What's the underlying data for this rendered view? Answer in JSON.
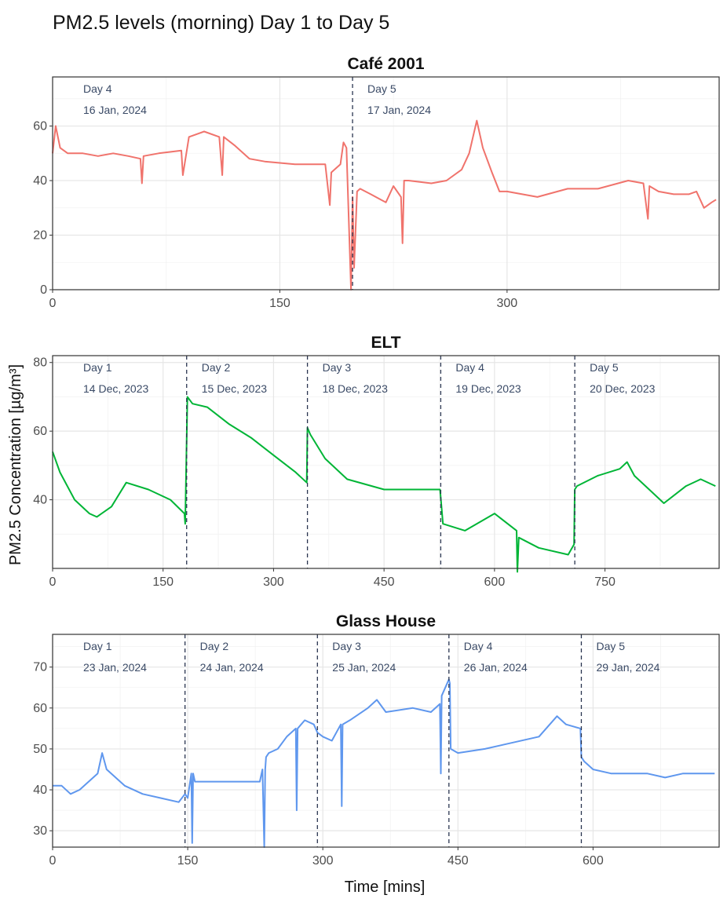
{
  "title": "PM2.5 levels (morning) Day 1 to Day 5",
  "xlabel": "Time [mins]",
  "ylabel": "PM2.5 Concentration [µg/m³]",
  "chart_data": [
    {
      "type": "line",
      "title": "Café 2001",
      "color": "#f0736c",
      "xlim": [
        0,
        440
      ],
      "ylim": [
        0,
        78
      ],
      "xticks": [
        0,
        150,
        300
      ],
      "yticks": [
        0,
        20,
        40,
        60
      ],
      "days": [
        {
          "start": 0,
          "name": "Day 4",
          "date": "16 Jan, 2024"
        },
        {
          "start": 198,
          "name": "Day 5",
          "date": "17 Jan, 2024"
        }
      ],
      "series": [
        {
          "x": [
            0,
            2,
            5,
            10,
            20,
            30,
            40,
            50,
            58,
            59,
            60,
            70,
            85,
            86,
            90,
            100,
            110,
            112,
            113,
            120,
            130,
            140,
            160,
            180,
            183,
            184,
            190,
            192,
            194,
            197,
            198,
            199,
            201,
            203,
            210,
            220,
            225,
            230,
            231,
            232,
            235,
            250,
            260,
            270,
            275,
            280,
            284,
            290,
            295,
            300,
            320,
            340,
            360,
            380,
            390,
            393,
            394,
            400,
            410,
            420,
            425,
            430,
            435,
            438
          ],
          "y": [
            50,
            60,
            52,
            50,
            50,
            49,
            50,
            49,
            48,
            39,
            49,
            50,
            51,
            42,
            56,
            58,
            56,
            42,
            56,
            53,
            48,
            47,
            46,
            46,
            31,
            43,
            46,
            54,
            52,
            0,
            34,
            8,
            36,
            37,
            35,
            32,
            38,
            34,
            17,
            40,
            40,
            39,
            40,
            44,
            50,
            62,
            52,
            43,
            36,
            36,
            34,
            37,
            37,
            40,
            39,
            26,
            38,
            36,
            35,
            35,
            36,
            30,
            32,
            33
          ]
        }
      ]
    },
    {
      "type": "line",
      "title": "ELT",
      "color": "#00b536",
      "xlim": [
        0,
        905
      ],
      "ylim": [
        20,
        82
      ],
      "xticks": [
        0,
        150,
        300,
        450,
        600,
        750
      ],
      "yticks": [
        40,
        60,
        80
      ],
      "days": [
        {
          "start": 0,
          "name": "Day 1",
          "date": "14 Dec, 2023"
        },
        {
          "start": 182,
          "name": "Day 2",
          "date": "15 Dec, 2023"
        },
        {
          "start": 346,
          "name": "Day 3",
          "date": "18 Dec, 2023"
        },
        {
          "start": 527,
          "name": "Day 4",
          "date": "19 Dec, 2023"
        },
        {
          "start": 709,
          "name": "Day 5",
          "date": "20 Dec, 2023"
        }
      ],
      "series": [
        {
          "x": [
            0,
            10,
            30,
            50,
            60,
            80,
            100,
            130,
            160,
            179,
            180,
            183,
            190,
            210,
            240,
            270,
            300,
            330,
            345,
            346,
            350,
            370,
            400,
            450,
            500,
            525,
            526,
            530,
            560,
            600,
            630,
            631,
            633,
            660,
            700,
            708,
            709,
            712,
            740,
            770,
            780,
            790,
            810,
            830,
            860,
            880,
            900
          ],
          "y": [
            54,
            48,
            40,
            36,
            35,
            38,
            45,
            43,
            40,
            36,
            33,
            70,
            68,
            67,
            62,
            58,
            53,
            48,
            45,
            61,
            59,
            52,
            46,
            43,
            43,
            43,
            43,
            33,
            31,
            36,
            31,
            19,
            29,
            26,
            24,
            27,
            43,
            44,
            47,
            49,
            51,
            47,
            43,
            39,
            44,
            46,
            44
          ]
        }
      ]
    },
    {
      "type": "line",
      "title": "Glass House",
      "color": "#5f97ee",
      "xlim": [
        0,
        740
      ],
      "ylim": [
        26,
        78
      ],
      "xticks": [
        0,
        150,
        300,
        450,
        600
      ],
      "yticks": [
        30,
        40,
        50,
        60,
        70
      ],
      "days": [
        {
          "start": 0,
          "name": "Day 1",
          "date": "23 Jan, 2024"
        },
        {
          "start": 147,
          "name": "Day 2",
          "date": "24 Jan, 2024"
        },
        {
          "start": 294,
          "name": "Day 3",
          "date": "25 Jan, 2024"
        },
        {
          "start": 440,
          "name": "Day 4",
          "date": "26 Jan, 2024"
        },
        {
          "start": 587,
          "name": "Day 5",
          "date": "29 Jan, 2024"
        }
      ],
      "series": [
        {
          "x": [
            0,
            10,
            20,
            30,
            40,
            50,
            55,
            60,
            70,
            80,
            100,
            120,
            140,
            147,
            150,
            154,
            155,
            156,
            158,
            180,
            200,
            230,
            233,
            235,
            236,
            237,
            240,
            250,
            260,
            270,
            271,
            272,
            280,
            290,
            294,
            300,
            310,
            320,
            321,
            322,
            330,
            350,
            360,
            370,
            400,
            420,
            430,
            431,
            432,
            440,
            441,
            442,
            450,
            480,
            500,
            540,
            560,
            570,
            586,
            587,
            590,
            600,
            620,
            640,
            660,
            680,
            700,
            720,
            735
          ],
          "y": [
            41,
            41,
            39,
            40,
            42,
            44,
            49,
            45,
            43,
            41,
            39,
            38,
            37,
            39,
            38,
            44,
            27,
            44,
            42,
            42,
            42,
            42,
            45,
            26,
            45,
            48,
            49,
            50,
            53,
            55,
            35,
            55,
            57,
            56,
            54,
            53,
            52,
            56,
            36,
            56,
            57,
            60,
            62,
            59,
            60,
            59,
            61,
            44,
            63,
            67,
            66,
            50,
            49,
            50,
            51,
            53,
            58,
            56,
            55,
            48,
            47,
            45,
            44,
            44,
            44,
            43,
            44,
            44,
            44
          ]
        }
      ]
    }
  ]
}
